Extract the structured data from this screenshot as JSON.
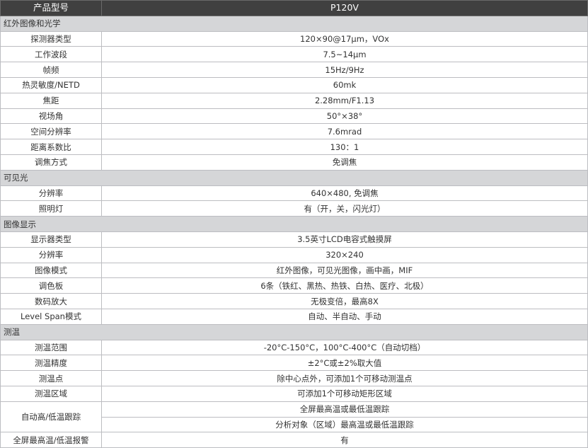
{
  "header": {
    "label": "产品型号",
    "model": "P120V"
  },
  "sections": [
    {
      "title": "红外图像和光学",
      "rows": [
        [
          "探测器类型",
          "120×90@17μm，VOx"
        ],
        [
          "工作波段",
          "7.5~14μm"
        ],
        [
          "帧频",
          "15Hz/9Hz"
        ],
        [
          "热灵敏度/NETD",
          "60mk"
        ],
        [
          "焦距",
          "2.28mm/F1.13"
        ],
        [
          "视场角",
          "50°×38°"
        ],
        [
          "空间分辨率",
          "7.6mrad"
        ],
        [
          "距离系数比",
          "130：1"
        ],
        [
          "调焦方式",
          "免调焦"
        ]
      ]
    },
    {
      "title": "可见光",
      "rows": [
        [
          "分辨率",
          "640×480, 免调焦"
        ],
        [
          "照明灯",
          "有（开，关，闪光灯）"
        ]
      ]
    },
    {
      "title": "图像显示",
      "rows": [
        [
          "显示器类型",
          "3.5英寸LCD电容式触摸屏"
        ],
        [
          "分辨率",
          "320×240"
        ],
        [
          "图像模式",
          "红外图像，可见光图像，画中画，MIF"
        ],
        [
          "调色板",
          "6条（铁红、黑热、热铁、白热、医疗、北极）"
        ],
        [
          "数码放大",
          "无极变倍，最高8X"
        ],
        [
          "Level Span模式",
          "自动、半自动、手动"
        ]
      ]
    },
    {
      "title": "测温",
      "rows": [
        [
          "测温范围",
          "-20°C-150°C，100°C-400°C（自动切档）"
        ],
        [
          "测温精度",
          "±2°C或±2%取大值"
        ],
        [
          "测温点",
          "除中心点外，可添加1个可移动测温点"
        ],
        [
          "测温区域",
          "可添加1个可移动矩形区域"
        ]
      ]
    }
  ],
  "tracking": {
    "label": "自动高/低温跟踪",
    "values": [
      "全屏最高温或最低温跟踪",
      "分析对象（区域）最高温或最低温跟踪"
    ]
  },
  "alarm": {
    "label": "全屏最高温/低温报警",
    "value": "有"
  },
  "colors": {
    "header_bg": "#404040",
    "section_bg": "#d5d6d8",
    "border": "#bcbdc1"
  }
}
